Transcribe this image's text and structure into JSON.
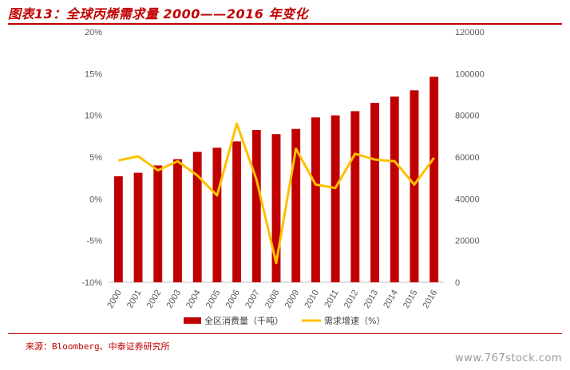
{
  "figure": {
    "title": "图表13：全球丙烯需求量 2000——2016 年变化",
    "source": "来源：Bloomberg、中泰证券研究所",
    "watermark": "www.767stock.com"
  },
  "chart_data": {
    "type": "bar+line",
    "categories": [
      "2000",
      "2001",
      "2002",
      "2003",
      "2004",
      "2005",
      "2006",
      "2007",
      "2008",
      "2009",
      "2010",
      "2011",
      "2012",
      "2013",
      "2014",
      "2015",
      "2016"
    ],
    "series": [
      {
        "name": "全区消费量（千吨）",
        "type": "bar",
        "axis": "right",
        "color": "#c00000",
        "values": [
          50800,
          52500,
          56000,
          59000,
          62500,
          64500,
          67500,
          73000,
          71000,
          73500,
          79000,
          80000,
          82000,
          86000,
          89000,
          92000,
          98500
        ]
      },
      {
        "name": "需求增速（%）",
        "type": "line",
        "axis": "left",
        "color": "#ffc000",
        "values": [
          4.6,
          5.1,
          3.4,
          4.5,
          2.8,
          0.4,
          9.0,
          2.3,
          -7.7,
          6.0,
          1.7,
          1.3,
          5.4,
          4.7,
          4.5,
          1.7,
          4.9
        ]
      }
    ],
    "y_left": {
      "min": -10,
      "max": 20,
      "step": 5,
      "ticks": [
        "-10%",
        "-5%",
        "0%",
        "5%",
        "10%",
        "15%",
        "20%"
      ]
    },
    "y_right": {
      "min": 0,
      "max": 120000,
      "step": 20000,
      "ticks": [
        "0",
        "20000",
        "40000",
        "60000",
        "80000",
        "100000",
        "120000"
      ]
    },
    "legend": {
      "placement": "bottom"
    },
    "grid": false
  }
}
